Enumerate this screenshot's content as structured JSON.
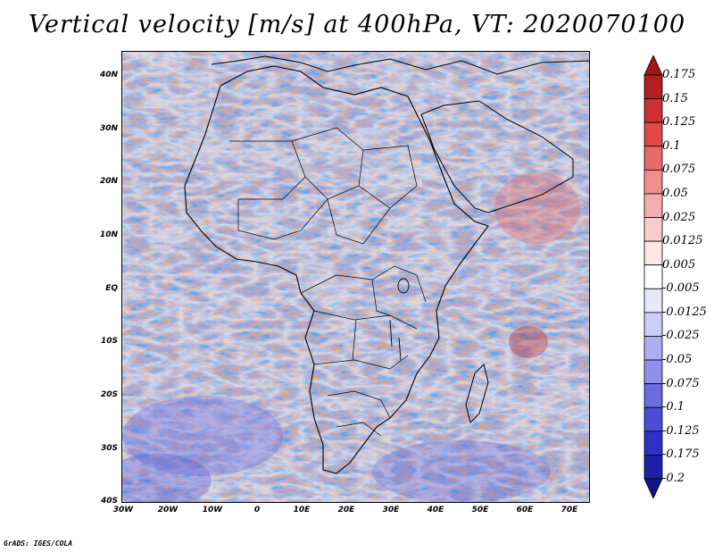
{
  "title": "Vertical velocity [m/s] at 400hPa, VT: 2020070100",
  "credit": "GrADS: IGES/COLA",
  "map": {
    "lat_labels": [
      "40N",
      "30N",
      "20N",
      "10N",
      "EQ",
      "10S",
      "20S",
      "30S",
      "40S"
    ],
    "lon_labels": [
      "30W",
      "20W",
      "10W",
      "0",
      "10E",
      "20E",
      "30E",
      "40E",
      "50E",
      "60E",
      "70E"
    ],
    "lon_range": [
      -30,
      75
    ],
    "lat_range": [
      -40,
      45
    ],
    "background_color": "#c7cdf5"
  },
  "colorbar": {
    "labels": [
      "0.175",
      "0.15",
      "0.125",
      "0.1",
      "0.075",
      "0.05",
      "0.025",
      "0.0125",
      "0.005",
      "-0.005",
      "-0.0125",
      "-0.025",
      "-0.05",
      "-0.075",
      "-0.1",
      "-0.125",
      "-0.175",
      "-0.2"
    ],
    "colors": [
      "#9e1616",
      "#b51e1e",
      "#cd3030",
      "#e04848",
      "#e96a6a",
      "#f08e8e",
      "#f5acac",
      "#f9cccc",
      "#fce6e6",
      "#ffffff",
      "#e6e6fc",
      "#cccdf8",
      "#acadf2",
      "#8e90ec",
      "#6a6ce2",
      "#4a4dd6",
      "#2e31c4",
      "#1c1fa8",
      "#12148a"
    ]
  }
}
